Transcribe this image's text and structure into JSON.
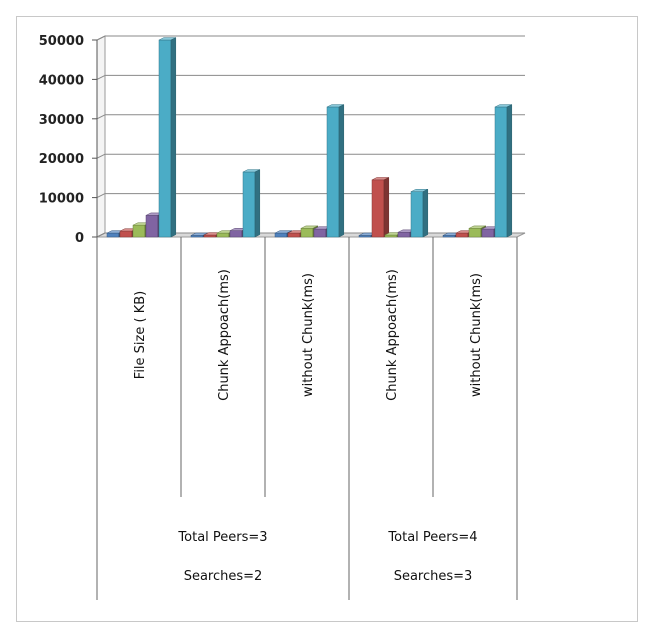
{
  "chart_data": {
    "type": "bar",
    "style": "3d-clustered-column",
    "y_ticks": [
      "0",
      "10000",
      "20000",
      "30000",
      "40000",
      "50000"
    ],
    "ylim": [
      0,
      50000
    ],
    "grid": true,
    "legend": "none",
    "categories": [
      "File Size  ( KB)",
      "Chunk Appoach(ms)",
      "without  Chunk(ms)",
      "Chunk Appoach(ms)",
      "without  Chunk(ms)"
    ],
    "groups": [
      {
        "line1": "Total Peers=3",
        "line2": "Searches=2",
        "span": [
          0,
          2
        ]
      },
      {
        "line1": "Total Peers=4",
        "line2": "Searches=3",
        "span": [
          3,
          4
        ]
      }
    ],
    "series": [
      {
        "color": "#4f81bd",
        "values": [
          1000,
          400,
          1000,
          400,
          400
        ]
      },
      {
        "color": "#c0504d",
        "values": [
          1500,
          500,
          1000,
          14500,
          1000
        ]
      },
      {
        "color": "#9bbb59",
        "values": [
          3000,
          1000,
          2200,
          500,
          2200
        ]
      },
      {
        "color": "#8064a2",
        "values": [
          5500,
          1600,
          2000,
          1200,
          2000
        ]
      },
      {
        "color": "#4bacc6",
        "values": [
          50000,
          16500,
          33000,
          11500,
          33000
        ]
      }
    ]
  }
}
